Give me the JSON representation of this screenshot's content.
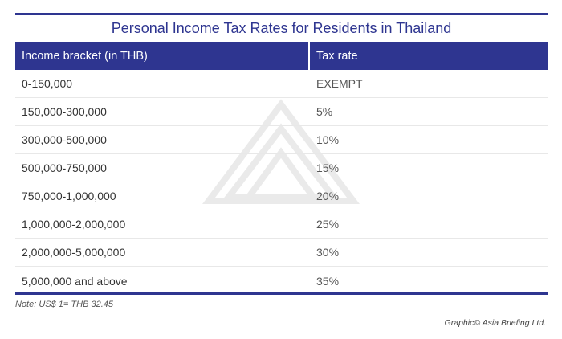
{
  "title": "Personal Income Tax Rates for Residents in Thailand",
  "table": {
    "headers": [
      "Income bracket (in THB)",
      "Tax rate"
    ],
    "rows": [
      [
        "0-150,000",
        "EXEMPT"
      ],
      [
        "150,000-300,000",
        "5%"
      ],
      [
        "300,000-500,000",
        "10%"
      ],
      [
        "500,000-750,000",
        "15%"
      ],
      [
        "750,000-1,000,000",
        "20%"
      ],
      [
        "1,000,000-2,000,000",
        "25%"
      ],
      [
        "2,000,000-5,000,000",
        "30%"
      ],
      [
        "5,000,000 and above",
        "35%"
      ]
    ]
  },
  "note": "Note: US$ 1= THB 32.45",
  "credit": "Graphic© Asia Briefing Ltd.",
  "colors": {
    "accent": "#2e3590"
  }
}
